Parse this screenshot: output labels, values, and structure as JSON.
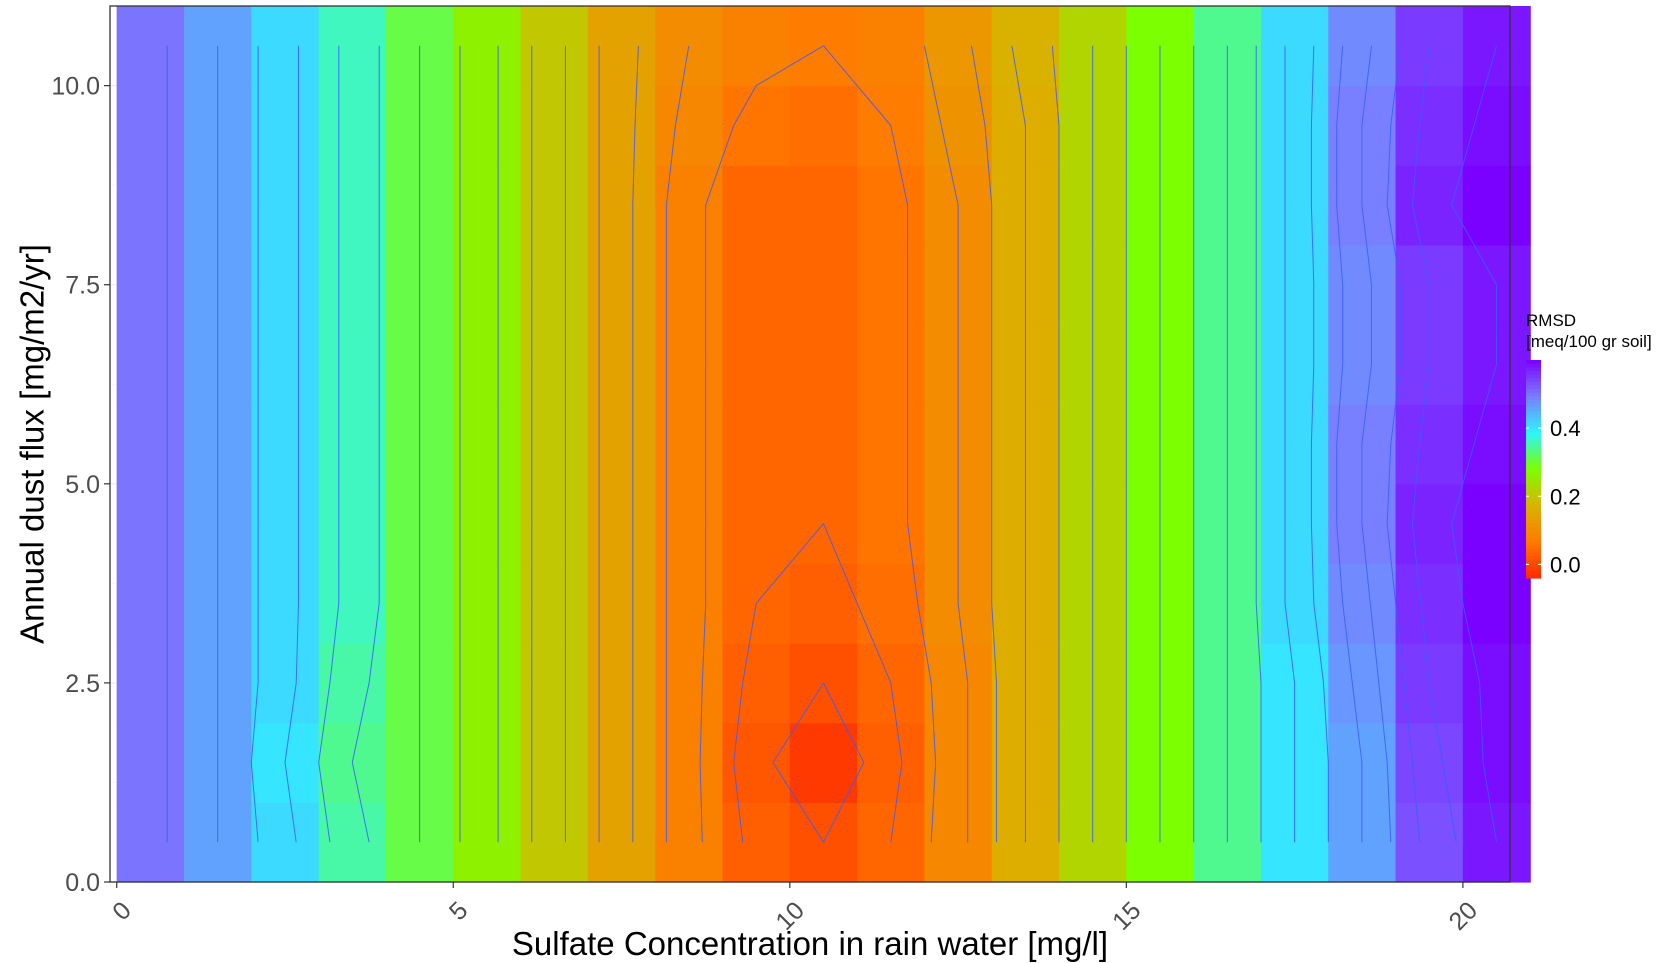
{
  "chart_data": {
    "type": "heatmap",
    "xlabel": "Sulfate Concentration in rain water [mg/l]",
    "ylabel": "Annual dust flux [mg/m2/yr]",
    "xlim": [
      -0.1,
      20.7
    ],
    "ylim": [
      0,
      11
    ],
    "x_ticks": [
      0,
      5,
      10,
      15,
      20
    ],
    "x_tick_labels": [
      "0",
      "5",
      "10",
      "15",
      "20"
    ],
    "y_ticks": [
      0,
      2.5,
      5,
      7.5,
      10
    ],
    "y_tick_labels": [
      "0.0",
      "2.5",
      "5.0",
      "7.5",
      "10.0"
    ],
    "grid": true,
    "colorbar": {
      "title_line1": "RMSD",
      "title_line2": "[meq/100 gr soil]",
      "ticks": [
        0.0,
        0.2,
        0.4
      ],
      "tick_labels": [
        "0.0",
        "0.2",
        "0.4"
      ],
      "range": [
        -0.04,
        0.6
      ],
      "colors": [
        "#ff2a00",
        "#ff7a00",
        "#d8b400",
        "#7cff00",
        "#2cf4ff",
        "#7b7cff",
        "#7a00ff"
      ]
    },
    "x": [
      0.5,
      1.5,
      2.5,
      3.5,
      4.5,
      5.5,
      6.5,
      7.5,
      8.5,
      9.5,
      10.5,
      11.5,
      12.5,
      13.5,
      14.5,
      15.5,
      16.5,
      17.5,
      18.5,
      19.5,
      20.5
    ],
    "y": [
      0.5,
      1.5,
      2.5,
      3.5,
      4.5,
      5.5,
      6.5,
      7.5,
      8.5,
      9.5,
      10.5
    ],
    "z": [
      [
        0.5,
        0.46,
        0.41,
        0.35,
        0.31,
        0.26,
        0.2,
        0.14,
        0.08,
        0.03,
        0.01,
        0.04,
        0.09,
        0.16,
        0.22,
        0.28,
        0.34,
        0.4,
        0.46,
        0.53,
        0.58
      ],
      [
        0.5,
        0.46,
        0.4,
        0.34,
        0.31,
        0.26,
        0.2,
        0.14,
        0.08,
        0.02,
        -0.02,
        0.03,
        0.09,
        0.16,
        0.22,
        0.28,
        0.34,
        0.4,
        0.46,
        0.54,
        0.59
      ],
      [
        0.5,
        0.46,
        0.41,
        0.35,
        0.31,
        0.26,
        0.2,
        0.14,
        0.08,
        0.03,
        0.01,
        0.04,
        0.09,
        0.16,
        0.22,
        0.28,
        0.34,
        0.4,
        0.47,
        0.55,
        0.59
      ],
      [
        0.5,
        0.46,
        0.41,
        0.36,
        0.31,
        0.26,
        0.2,
        0.14,
        0.08,
        0.04,
        0.03,
        0.05,
        0.1,
        0.16,
        0.22,
        0.28,
        0.34,
        0.41,
        0.48,
        0.56,
        0.6
      ],
      [
        0.5,
        0.46,
        0.41,
        0.36,
        0.31,
        0.26,
        0.2,
        0.14,
        0.08,
        0.04,
        0.04,
        0.06,
        0.1,
        0.16,
        0.22,
        0.28,
        0.34,
        0.41,
        0.49,
        0.57,
        0.6
      ],
      [
        0.5,
        0.46,
        0.41,
        0.36,
        0.31,
        0.26,
        0.2,
        0.14,
        0.08,
        0.04,
        0.04,
        0.06,
        0.1,
        0.16,
        0.22,
        0.28,
        0.34,
        0.41,
        0.49,
        0.56,
        0.59
      ],
      [
        0.5,
        0.46,
        0.41,
        0.36,
        0.31,
        0.26,
        0.2,
        0.14,
        0.08,
        0.04,
        0.04,
        0.06,
        0.1,
        0.16,
        0.22,
        0.28,
        0.34,
        0.41,
        0.48,
        0.55,
        0.58
      ],
      [
        0.5,
        0.46,
        0.41,
        0.36,
        0.31,
        0.26,
        0.2,
        0.14,
        0.08,
        0.04,
        0.04,
        0.06,
        0.1,
        0.16,
        0.22,
        0.28,
        0.34,
        0.41,
        0.48,
        0.55,
        0.58
      ],
      [
        0.5,
        0.46,
        0.41,
        0.36,
        0.31,
        0.26,
        0.2,
        0.14,
        0.08,
        0.04,
        0.04,
        0.06,
        0.1,
        0.16,
        0.22,
        0.28,
        0.34,
        0.41,
        0.49,
        0.57,
        0.6
      ],
      [
        0.5,
        0.46,
        0.41,
        0.36,
        0.31,
        0.26,
        0.2,
        0.14,
        0.09,
        0.06,
        0.05,
        0.07,
        0.11,
        0.16,
        0.22,
        0.28,
        0.34,
        0.41,
        0.49,
        0.56,
        0.59
      ],
      [
        0.5,
        0.46,
        0.41,
        0.36,
        0.31,
        0.26,
        0.2,
        0.14,
        0.1,
        0.08,
        0.07,
        0.08,
        0.12,
        0.17,
        0.22,
        0.28,
        0.34,
        0.41,
        0.48,
        0.55,
        0.58
      ]
    ]
  }
}
